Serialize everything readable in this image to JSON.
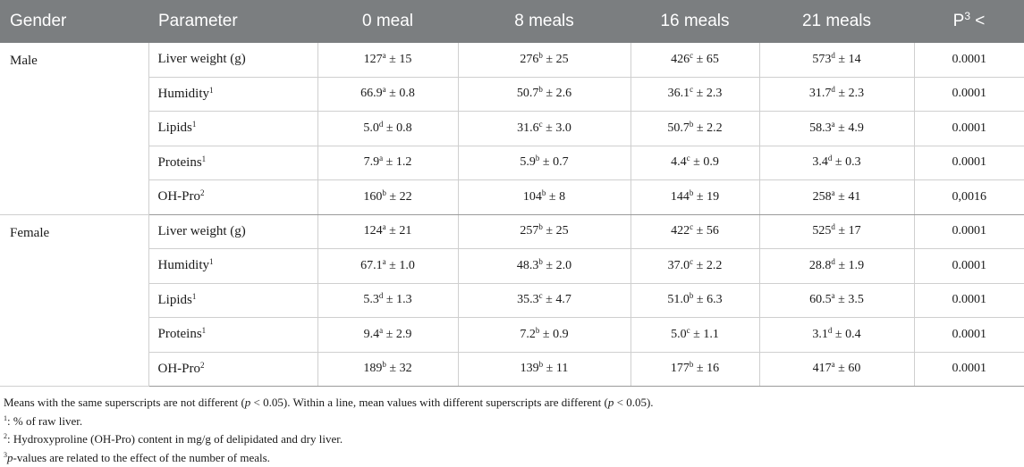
{
  "header": {
    "gender": "Gender",
    "parameter": "Parameter",
    "cols": [
      "0 meal",
      "8 meals",
      "16 meals",
      "21 meals"
    ],
    "p_label": "P",
    "p_sup": "3",
    "p_suffix": " <"
  },
  "groups": [
    {
      "gender": "Male",
      "rows": [
        {
          "param": "Liver weight (g)",
          "param_sup": "",
          "cells": [
            {
              "v": "127",
              "s": "a",
              "e": " ± 15"
            },
            {
              "v": "276",
              "s": "b",
              "e": " ± 25"
            },
            {
              "v": "426",
              "s": "c",
              "e": " ± 65"
            },
            {
              "v": "573",
              "s": "d",
              "e": " ± 14"
            }
          ],
          "p": "0.0001"
        },
        {
          "param": "Humidity",
          "param_sup": "1",
          "cells": [
            {
              "v": "66.9",
              "s": "a",
              "e": " ± 0.8"
            },
            {
              "v": "50.7",
              "s": "b",
              "e": " ± 2.6"
            },
            {
              "v": "36.1",
              "s": "c",
              "e": " ± 2.3"
            },
            {
              "v": "31.7",
              "s": "d",
              "e": " ± 2.3"
            }
          ],
          "p": "0.0001"
        },
        {
          "param": "Lipids",
          "param_sup": "1",
          "cells": [
            {
              "v": "5.0",
              "s": "d",
              "e": " ± 0.8"
            },
            {
              "v": "31.6",
              "s": "c",
              "e": " ± 3.0"
            },
            {
              "v": "50.7",
              "s": "b",
              "e": " ± 2.2"
            },
            {
              "v": "58.3",
              "s": "a",
              "e": " ± 4.9"
            }
          ],
          "p": "0.0001"
        },
        {
          "param": "Proteins",
          "param_sup": "1",
          "cells": [
            {
              "v": "7.9",
              "s": "a",
              "e": " ± 1.2"
            },
            {
              "v": "5.9",
              "s": "b",
              "e": " ± 0.7"
            },
            {
              "v": "4.4",
              "s": "c",
              "e": " ± 0.9"
            },
            {
              "v": "3.4",
              "s": "d",
              "e": " ± 0.3"
            }
          ],
          "p": "0.0001"
        },
        {
          "param": "OH-Pro",
          "param_sup": "2",
          "cells": [
            {
              "v": "160",
              "s": "b",
              "e": " ± 22"
            },
            {
              "v": "104",
              "s": "b",
              "e": " ± 8"
            },
            {
              "v": "144",
              "s": "b",
              "e": " ± 19"
            },
            {
              "v": "258",
              "s": "a",
              "e": " ± 41"
            }
          ],
          "p": "0,0016"
        }
      ]
    },
    {
      "gender": "Female",
      "rows": [
        {
          "param": "Liver weight (g)",
          "param_sup": "",
          "cells": [
            {
              "v": "124",
              "s": "a",
              "e": " ± 21"
            },
            {
              "v": "257",
              "s": "b",
              "e": " ± 25"
            },
            {
              "v": "422",
              "s": "c",
              "e": " ± 56"
            },
            {
              "v": "525",
              "s": "d",
              "e": " ± 17"
            }
          ],
          "p": "0.0001"
        },
        {
          "param": "Humidity",
          "param_sup": "1",
          "cells": [
            {
              "v": "67.1",
              "s": "a",
              "e": " ± 1.0"
            },
            {
              "v": "48.3",
              "s": "b",
              "e": " ± 2.0"
            },
            {
              "v": "37.0",
              "s": "c",
              "e": " ± 2.2"
            },
            {
              "v": "28.8",
              "s": "d",
              "e": " ± 1.9"
            }
          ],
          "p": "0.0001"
        },
        {
          "param": "Lipids",
          "param_sup": "1",
          "cells": [
            {
              "v": "5.3",
              "s": "d",
              "e": " ± 1.3"
            },
            {
              "v": "35.3",
              "s": "c",
              "e": " ± 4.7"
            },
            {
              "v": "51.0",
              "s": "b",
              "e": " ± 6.3"
            },
            {
              "v": "60.5",
              "s": "a",
              "e": " ± 3.5"
            }
          ],
          "p": "0.0001"
        },
        {
          "param": "Proteins",
          "param_sup": "1",
          "cells": [
            {
              "v": "9.4",
              "s": "a",
              "e": " ± 2.9"
            },
            {
              "v": "7.2",
              "s": "b",
              "e": " ± 0.9"
            },
            {
              "v": "5.0",
              "s": "c",
              "e": " ± 1.1"
            },
            {
              "v": "3.1",
              "s": "d",
              "e": " ± 0.4"
            }
          ],
          "p": "0.0001"
        },
        {
          "param": "OH-Pro",
          "param_sup": "2",
          "cells": [
            {
              "v": "189",
              "s": "b",
              "e": " ± 32"
            },
            {
              "v": "139",
              "s": "b",
              "e": " ± 11"
            },
            {
              "v": "177",
              "s": "b",
              "e": " ± 16"
            },
            {
              "v": "417",
              "s": "a",
              "e": " ± 60"
            }
          ],
          "p": "0.0001"
        }
      ]
    }
  ],
  "notes": {
    "line1_a": "Means with the same superscripts are not different (",
    "line1_p1": "p",
    "line1_b": " < 0.05). Within a line, mean values with different superscripts are different (",
    "line1_p2": "p",
    "line1_c": " < 0.05).",
    "n1_sup": "1",
    "n1_text": ": % of raw liver.",
    "n2_sup": "2",
    "n2_text": ": Hydroxyproline (OH-Pro) content in mg/g of delipidated and dry liver.",
    "n3_sup": "3",
    "n3_p": "p",
    "n3_text": "-values are related to the effect of the number of meals."
  }
}
